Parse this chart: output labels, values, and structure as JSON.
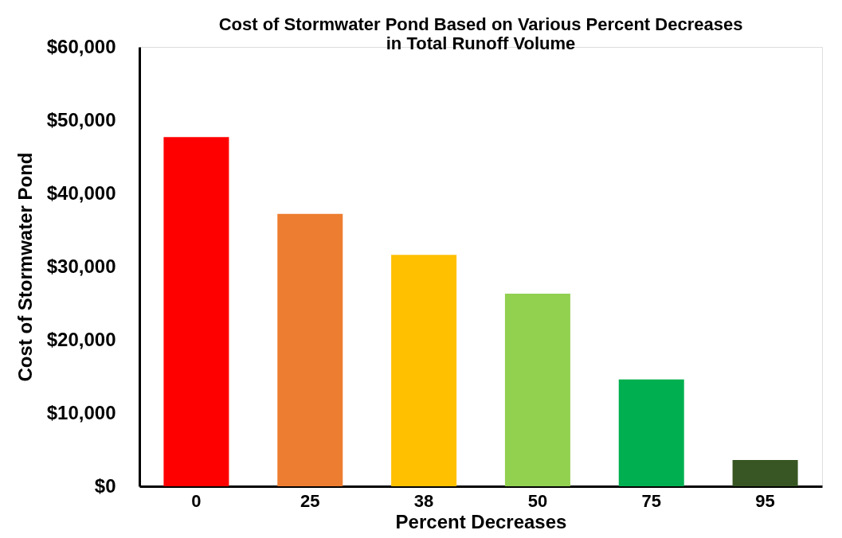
{
  "chart_data": {
    "type": "bar",
    "title": [
      "Cost of Stormwater Pond Based on Various Percent Decreases",
      "in Total Runoff Volume"
    ],
    "xlabel": "Percent Decreases",
    "ylabel": "Cost of Stormwater Pond",
    "categories": [
      "0",
      "25",
      "38",
      "50",
      "75",
      "95"
    ],
    "values": [
      47700,
      37200,
      31600,
      26300,
      14600,
      3600
    ],
    "colors": [
      "#ff0000",
      "#ed7d31",
      "#ffc000",
      "#92d050",
      "#00b050",
      "#375623"
    ],
    "ylim": [
      0,
      60000
    ],
    "yticks": [
      {
        "value": 0,
        "label": "$0"
      },
      {
        "value": 10000,
        "label": "$10,000"
      },
      {
        "value": 20000,
        "label": "$20,000"
      },
      {
        "value": 30000,
        "label": "$30,000"
      },
      {
        "value": 40000,
        "label": "$40,000"
      },
      {
        "value": 50000,
        "label": "$50,000"
      },
      {
        "value": 60000,
        "label": "$60,000"
      }
    ],
    "grid": false
  }
}
